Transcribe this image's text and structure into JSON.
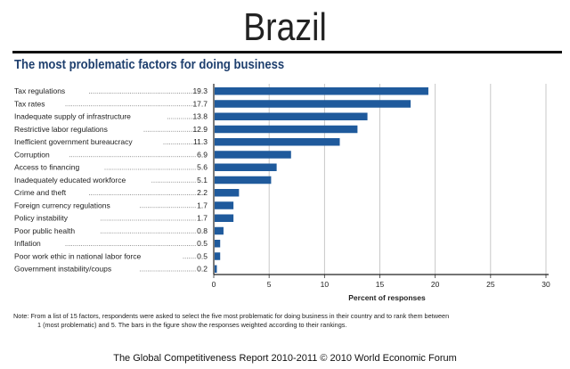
{
  "chart_data": {
    "type": "bar",
    "orientation": "horizontal",
    "title": "Brazil",
    "subtitle": "The most problematic factors for doing business",
    "categories": [
      "Tax regulations",
      "Tax rates",
      "Inadequate supply of infrastructure",
      "Restrictive labor regulations",
      "Inefficient government bureaucracy",
      "Corruption",
      "Access to financing",
      "Inadequately educated workforce",
      "Crime and theft",
      "Foreign currency regulations",
      "Policy instability",
      "Poor public health",
      "Inflation",
      "Poor work ethic in national labor force",
      "Government instability/coups"
    ],
    "values": [
      19.3,
      17.7,
      13.8,
      12.9,
      11.3,
      6.9,
      5.6,
      5.1,
      2.2,
      1.7,
      1.7,
      0.8,
      0.5,
      0.5,
      0.2
    ],
    "value_labels": [
      "19.3",
      "17.7",
      "13.8",
      "12.9",
      "11.3",
      "6.9",
      "5.6",
      "5.1",
      "2.2",
      "1.7",
      "1.7",
      "0.8",
      "0.5",
      "0.5",
      "0.2"
    ],
    "xlabel": "Percent of responses",
    "xlim": [
      0,
      30
    ],
    "xticks": [
      "0",
      "5",
      "10",
      "15",
      "20",
      "25",
      "30"
    ],
    "grid": "vertical",
    "bar_color": "#1f5a9c"
  },
  "note_line1": "Note: From a list of 15 factors, respondents were asked to select the five most problematic for doing business in their country and to rank them between",
  "note_line2": "1 (most problematic) and 5. The bars in the figure show the responses weighted according to their rankings.",
  "footer": "The Global Competitiveness Report 2010-2011 © 2010 World Economic Forum"
}
